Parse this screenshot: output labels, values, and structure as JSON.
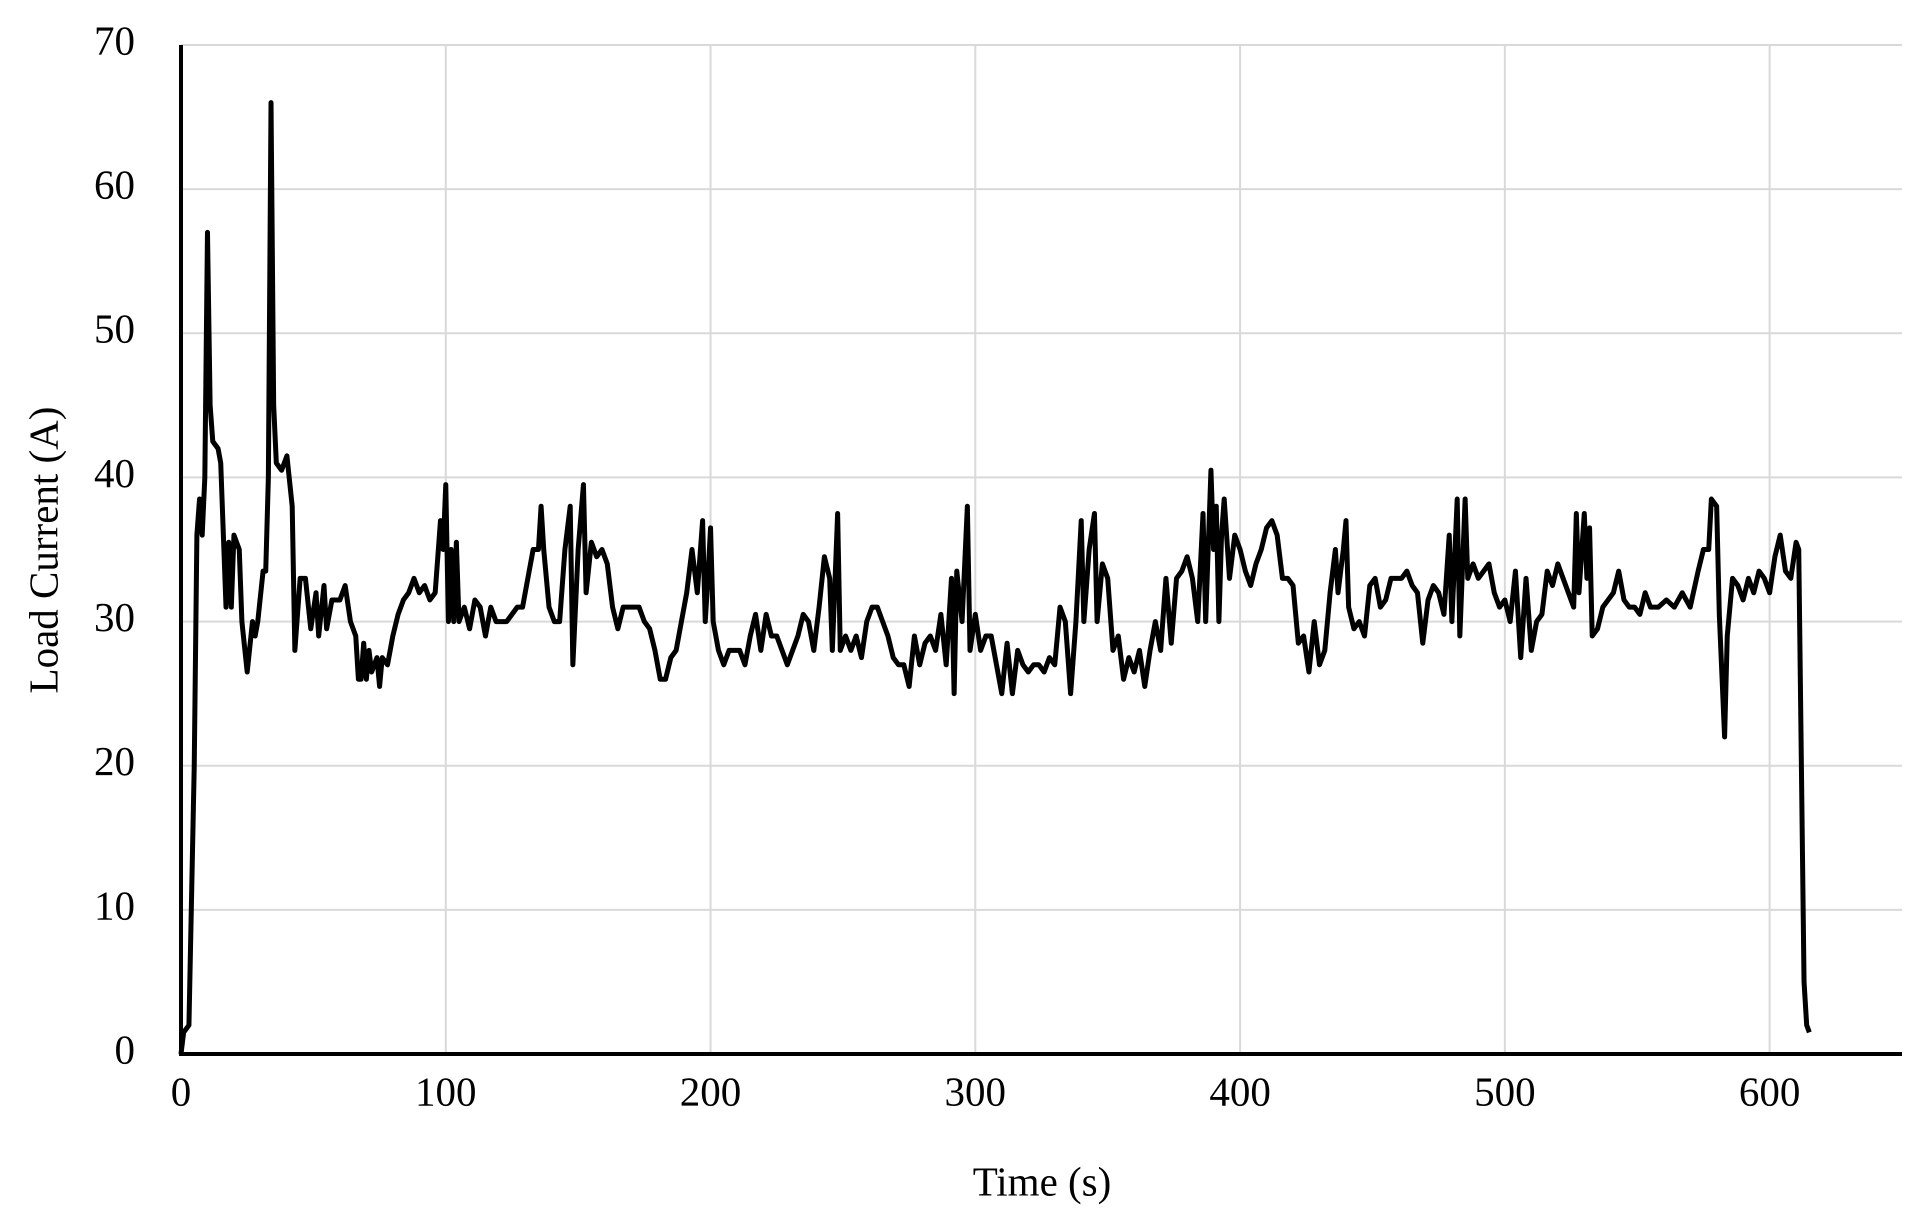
{
  "chart_data": {
    "type": "line",
    "xlabel": "Time (s)",
    "ylabel": "Load Current (A)",
    "color": "#000000",
    "grid": true,
    "xlim": [
      0,
      650
    ],
    "xticks": [
      0,
      100,
      200,
      300,
      400,
      500,
      600
    ],
    "ylim": [
      0,
      70
    ],
    "yticks": [
      0,
      10,
      20,
      30,
      40,
      50,
      60,
      70
    ],
    "x": [
      0,
      1,
      3,
      5,
      6,
      7,
      8,
      9,
      10,
      11,
      12,
      14,
      15,
      17,
      18,
      19,
      20,
      22,
      23,
      25,
      27,
      28,
      29,
      31,
      32,
      33,
      34,
      35,
      36,
      38,
      40,
      42,
      43,
      45,
      47,
      49,
      51,
      52,
      54,
      55,
      57,
      60,
      62,
      64,
      66,
      67,
      68,
      69,
      70,
      71,
      72,
      74,
      75,
      76,
      78,
      80,
      82,
      84,
      86,
      88,
      90,
      92,
      94,
      96,
      98,
      99,
      100,
      101,
      102,
      103,
      104,
      105,
      107,
      109,
      111,
      113,
      115,
      117,
      119,
      121,
      123,
      125,
      127,
      129,
      131,
      133,
      135,
      136,
      137,
      139,
      141,
      143,
      145,
      147,
      148,
      150,
      152,
      153,
      155,
      157,
      159,
      161,
      163,
      165,
      167,
      169,
      171,
      173,
      175,
      177,
      179,
      181,
      183,
      185,
      187,
      189,
      191,
      193,
      195,
      197,
      198,
      199,
      200,
      201,
      203,
      205,
      207,
      209,
      211,
      213,
      215,
      217,
      219,
      221,
      223,
      225,
      227,
      229,
      231,
      233,
      235,
      237,
      239,
      241,
      243,
      245,
      246,
      248,
      249,
      251,
      253,
      255,
      257,
      259,
      261,
      263,
      265,
      267,
      269,
      271,
      273,
      275,
      277,
      279,
      281,
      283,
      285,
      287,
      289,
      291,
      292,
      293,
      295,
      297,
      298,
      300,
      302,
      304,
      306,
      308,
      310,
      312,
      314,
      316,
      318,
      320,
      322,
      324,
      326,
      328,
      330,
      332,
      334,
      336,
      338,
      340,
      341,
      343,
      345,
      346,
      348,
      350,
      352,
      354,
      356,
      358,
      360,
      362,
      364,
      366,
      368,
      370,
      372,
      374,
      376,
      378,
      380,
      382,
      384,
      386,
      387,
      389,
      390,
      391,
      392,
      393,
      394,
      396,
      398,
      400,
      402,
      404,
      406,
      408,
      410,
      412,
      414,
      416,
      418,
      420,
      422,
      424,
      426,
      428,
      430,
      432,
      434,
      436,
      437,
      439,
      440,
      441,
      443,
      445,
      447,
      449,
      451,
      453,
      455,
      457,
      459,
      461,
      463,
      465,
      467,
      469,
      471,
      473,
      475,
      477,
      479,
      480,
      482,
      483,
      485,
      486,
      488,
      490,
      492,
      494,
      496,
      498,
      500,
      502,
      504,
      506,
      508,
      510,
      512,
      514,
      516,
      518,
      520,
      522,
      524,
      526,
      527,
      528,
      530,
      531,
      532,
      533,
      535,
      537,
      539,
      541,
      543,
      545,
      547,
      549,
      551,
      553,
      555,
      558,
      561,
      564,
      567,
      570,
      573,
      575,
      577,
      578,
      580,
      581,
      583,
      584,
      586,
      588,
      590,
      592,
      594,
      596,
      598,
      600,
      602,
      604,
      606,
      608,
      610,
      611,
      612,
      613,
      614,
      615
    ],
    "values": [
      0,
      1.5,
      2,
      20,
      36,
      38.5,
      36,
      40,
      57,
      45,
      42.5,
      42,
      41,
      31,
      35.5,
      31,
      36,
      35,
      30,
      26.5,
      30,
      29,
      30,
      33.5,
      33.5,
      40,
      66,
      45,
      41,
      40.5,
      41.5,
      38,
      28,
      33,
      33,
      29.5,
      32,
      29,
      32.5,
      29.5,
      31.5,
      31.5,
      32.5,
      30,
      29,
      26,
      26,
      28.5,
      26,
      28,
      26.5,
      27.5,
      25.5,
      27.5,
      27,
      29,
      30.5,
      31.5,
      32,
      33,
      32,
      32.5,
      31.5,
      32,
      37,
      35,
      39.5,
      30,
      35,
      30,
      35.5,
      30,
      31,
      29.5,
      31.5,
      31,
      29,
      31,
      30,
      30,
      30,
      30.5,
      31,
      31,
      33,
      35,
      35,
      38,
      35,
      31,
      30,
      30,
      35,
      38,
      27,
      35,
      39.5,
      32,
      35.5,
      34.5,
      35,
      34,
      31,
      29.5,
      31,
      31,
      31,
      31,
      30,
      29.5,
      28,
      26,
      26,
      27.5,
      28,
      30,
      32,
      35,
      32,
      37,
      30,
      33,
      36.5,
      30,
      28,
      27,
      28,
      28,
      28,
      27,
      29,
      30.5,
      28,
      30.5,
      29,
      29,
      28,
      27,
      28,
      29,
      30.5,
      30,
      28,
      31,
      34.5,
      33,
      28,
      37.5,
      28,
      29,
      28,
      29,
      27.5,
      30,
      31,
      31,
      30,
      29,
      27.5,
      27,
      27,
      25.5,
      29,
      27,
      28.5,
      29,
      28,
      30.5,
      27,
      33,
      25,
      33.5,
      30,
      38,
      28,
      30.5,
      28,
      29,
      29,
      27,
      25,
      28.5,
      25,
      28,
      27,
      26.5,
      27,
      27,
      26.5,
      27.5,
      27,
      31,
      30,
      25,
      30,
      37,
      30,
      35,
      37.5,
      30,
      34,
      33,
      28,
      29,
      26,
      27.5,
      26.5,
      28,
      25.5,
      28,
      30,
      28,
      33,
      28.5,
      33,
      33.5,
      34.5,
      33,
      30,
      37.5,
      30,
      40.5,
      35,
      38,
      30,
      36,
      38.5,
      33,
      36,
      35,
      33.5,
      32.5,
      34,
      35,
      36.5,
      37,
      36,
      33,
      33,
      32.5,
      28.5,
      29,
      26.5,
      30,
      27,
      28,
      32,
      35,
      32,
      35,
      37,
      31,
      29.5,
      30,
      29,
      32.5,
      33,
      31,
      31.5,
      33,
      33,
      33,
      33.5,
      32.5,
      32,
      28.5,
      31.5,
      32.5,
      32,
      30.5,
      36,
      30,
      38.5,
      29,
      38.5,
      33,
      34,
      33,
      33.5,
      34,
      32,
      31,
      31.5,
      30,
      33.5,
      27.5,
      33,
      28,
      30,
      30.5,
      33.5,
      32.5,
      34,
      33,
      32,
      31,
      37.5,
      32,
      37.5,
      33,
      36.5,
      29,
      29.5,
      31,
      31.5,
      32,
      33.5,
      31.5,
      31,
      31,
      30.5,
      32,
      31,
      31,
      31.5,
      31,
      32,
      31,
      33.5,
      35,
      35,
      38.5,
      38,
      30.5,
      22,
      29,
      33,
      32.5,
      31.5,
      33,
      32,
      33.5,
      33,
      32,
      34.5,
      36,
      33.5,
      33,
      35.5,
      35,
      20,
      5,
      2,
      1.5
    ]
  }
}
